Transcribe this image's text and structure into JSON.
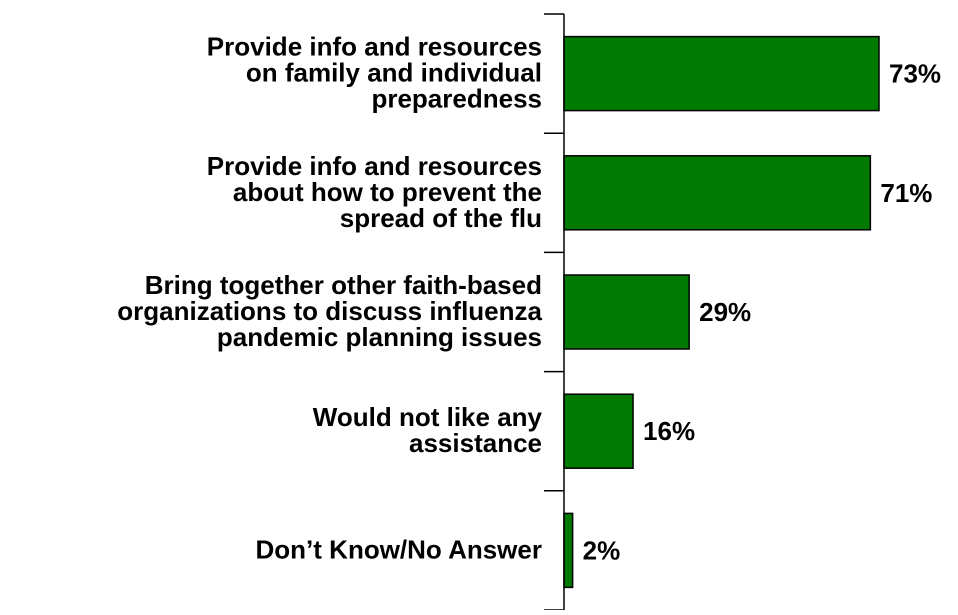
{
  "chart_data": {
    "type": "bar",
    "orientation": "horizontal",
    "categories": [
      [
        "Provide info and resources",
        "on family and individual",
        "preparedness"
      ],
      [
        "Provide info and resources",
        "about how to prevent the",
        "spread of the flu"
      ],
      [
        "Bring together other faith-based",
        "organizations to discuss influenza",
        "pandemic planning issues"
      ],
      [
        "Would not like any",
        "assistance"
      ],
      [
        "Don’t Know/No Answer"
      ]
    ],
    "values": [
      73,
      71,
      29,
      16,
      2
    ],
    "value_labels": [
      "73%",
      "71%",
      "29%",
      "16%",
      "2%"
    ],
    "xlim": [
      0,
      100
    ],
    "bar_color": "#007a00",
    "title": "",
    "xlabel": "",
    "ylabel": ""
  }
}
